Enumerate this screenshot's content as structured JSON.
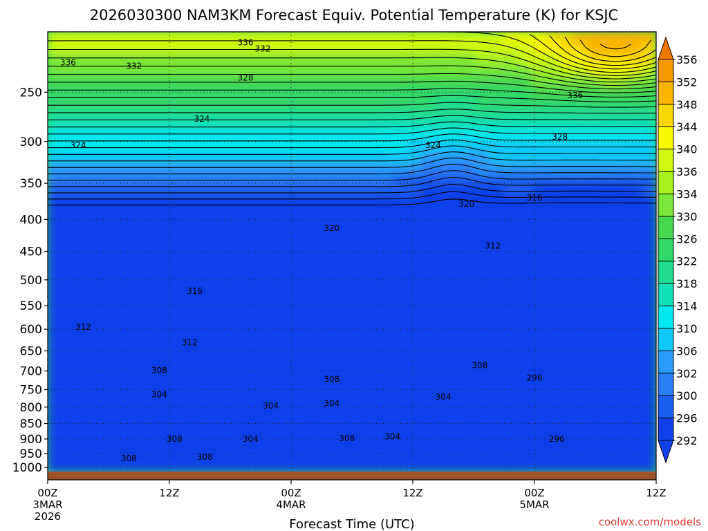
{
  "title": "2026030300 NAM3KM Forecast Equiv. Potential Temperature (K) for KSJC",
  "xlabel": "Forecast Time (UTC)",
  "credit": "coolwx.com/models",
  "chart_data": {
    "type": "heatmap",
    "title": "2026030300 NAM3KM Forecast Equiv. Potential Temperature (K) for KSJC",
    "xlabel": "Forecast Time (UTC)",
    "ylabel": "",
    "x_ticks": [
      {
        "hour": 0,
        "lines": [
          "00Z",
          "3MAR",
          "2026"
        ]
      },
      {
        "hour": 12,
        "lines": [
          "12Z"
        ]
      },
      {
        "hour": 24,
        "lines": [
          "00Z",
          "4MAR"
        ]
      },
      {
        "hour": 36,
        "lines": [
          "12Z"
        ]
      },
      {
        "hour": 48,
        "lines": [
          "00Z",
          "5MAR"
        ]
      },
      {
        "hour": 60,
        "lines": [
          "12Z"
        ]
      }
    ],
    "xlim": [
      0,
      60
    ],
    "y_ticks": [
      250,
      300,
      350,
      400,
      450,
      500,
      550,
      600,
      650,
      700,
      750,
      800,
      850,
      900,
      950,
      1000
    ],
    "ylim": [
      200,
      1015
    ],
    "y_scale": "log",
    "grid": true,
    "colorbar": {
      "levels": [
        292,
        296,
        300,
        302,
        306,
        310,
        314,
        318,
        322,
        326,
        330,
        334,
        336,
        340,
        344,
        348,
        352,
        356
      ],
      "colors": [
        "#1040e8",
        "#1a5ef0",
        "#2a7ef8",
        "#2a9af8",
        "#10c8f8",
        "#00e8f0",
        "#10e0b8",
        "#20dc90",
        "#30d868",
        "#48d850",
        "#78e838",
        "#a8f020",
        "#d0f810",
        "#f8f800",
        "#f8d800",
        "#f8b400",
        "#f89800",
        "#f07800"
      ],
      "extend": "both"
    },
    "contour_labels": [
      {
        "text": "336",
        "hour": 19.5,
        "p": 208
      },
      {
        "text": "332",
        "hour": 21.2,
        "p": 213
      },
      {
        "text": "336",
        "hour": 2.0,
        "p": 224
      },
      {
        "text": "332",
        "hour": 8.5,
        "p": 227
      },
      {
        "text": "328",
        "hour": 19.5,
        "p": 237
      },
      {
        "text": "336",
        "hour": 52.0,
        "p": 253
      },
      {
        "text": "324",
        "hour": 15.2,
        "p": 276
      },
      {
        "text": "328",
        "hour": 50.5,
        "p": 295
      },
      {
        "text": "324",
        "hour": 3.0,
        "p": 304
      },
      {
        "text": "324",
        "hour": 38.0,
        "p": 304
      },
      {
        "text": "316",
        "hour": 48.0,
        "p": 369
      },
      {
        "text": "320",
        "hour": 41.3,
        "p": 378
      },
      {
        "text": "320",
        "hour": 28.0,
        "p": 413
      },
      {
        "text": "312",
        "hour": 43.9,
        "p": 441
      },
      {
        "text": "316",
        "hour": 14.5,
        "p": 521
      },
      {
        "text": "312",
        "hour": 3.5,
        "p": 595
      },
      {
        "text": "312",
        "hour": 14.0,
        "p": 630
      },
      {
        "text": "308",
        "hour": 42.6,
        "p": 686
      },
      {
        "text": "308",
        "hour": 11.0,
        "p": 698
      },
      {
        "text": "296",
        "hour": 48.0,
        "p": 718
      },
      {
        "text": "308",
        "hour": 28.0,
        "p": 722
      },
      {
        "text": "304",
        "hour": 11.0,
        "p": 763
      },
      {
        "text": "304",
        "hour": 39.0,
        "p": 770
      },
      {
        "text": "304",
        "hour": 28.0,
        "p": 789
      },
      {
        "text": "304",
        "hour": 22.0,
        "p": 796
      },
      {
        "text": "304",
        "hour": 34.0,
        "p": 892
      },
      {
        "text": "308",
        "hour": 12.5,
        "p": 900
      },
      {
        "text": "304",
        "hour": 20.0,
        "p": 900
      },
      {
        "text": "308",
        "hour": 29.5,
        "p": 898
      },
      {
        "text": "296",
        "hour": 50.2,
        "p": 900
      },
      {
        "text": "308",
        "hour": 8.0,
        "p": 967
      },
      {
        "text": "308",
        "hour": 15.5,
        "p": 962
      }
    ]
  }
}
